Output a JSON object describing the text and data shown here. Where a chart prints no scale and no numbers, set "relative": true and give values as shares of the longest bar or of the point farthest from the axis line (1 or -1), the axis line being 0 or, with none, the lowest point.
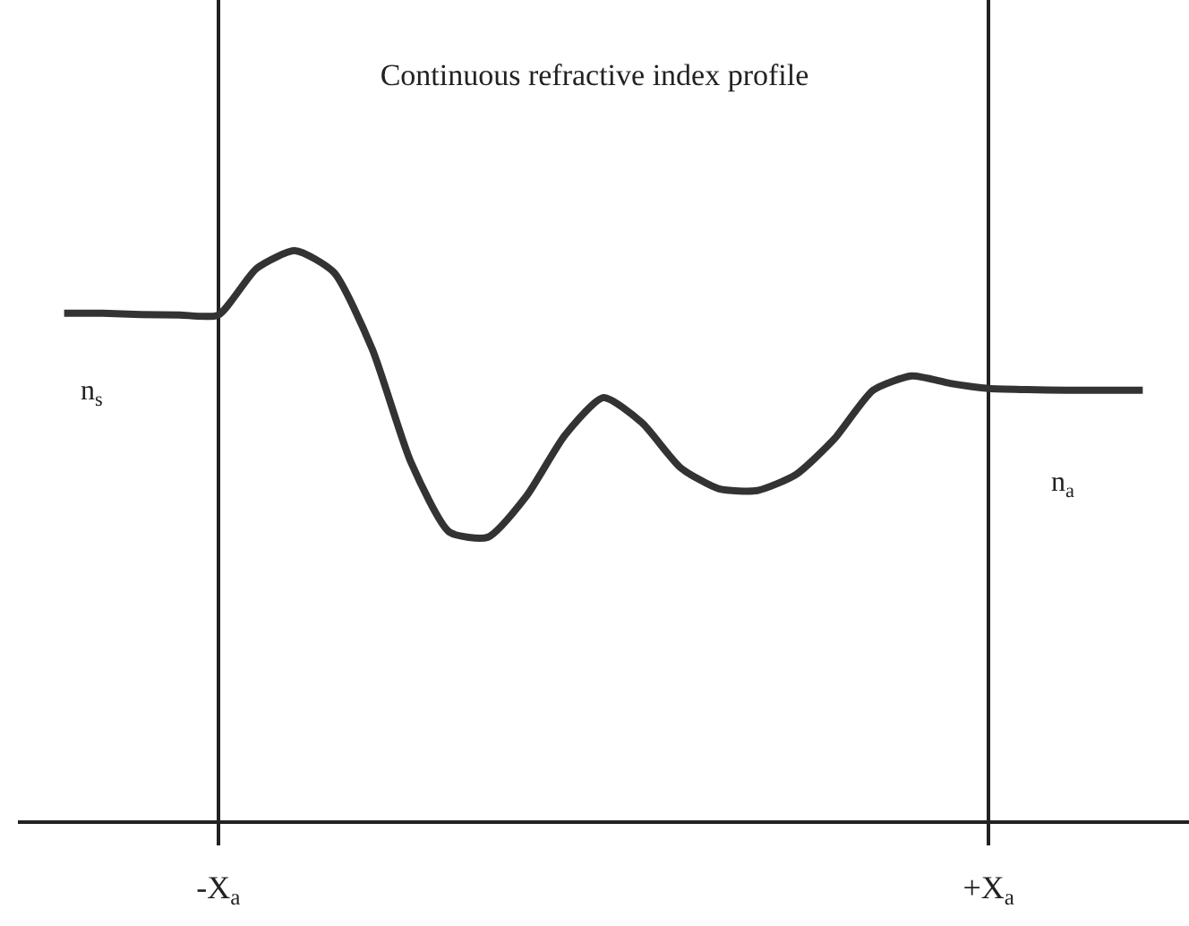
{
  "chart_data": {
    "type": "line",
    "title": "Continuous refractive index profile",
    "relative": true,
    "categories": [
      null,
      null,
      null,
      null,
      "-X$_{a}$",
      null,
      null,
      null,
      null,
      null,
      null,
      null,
      null,
      null,
      null,
      null,
      null,
      null,
      null,
      null,
      null,
      null,
      null,
      null,
      "+X$_{a}$",
      null,
      null,
      null,
      null
    ],
    "grid": "x",
    "marker": "none",
    "line_style": "solid",
    "series": [
      {
        "color": "#333333",
        "values": [
          0.89,
          0.89,
          0.888,
          0.887,
          0.887,
          0.969,
          1,
          0.962,
          0.827,
          0.629,
          0.506,
          0.497,
          0.569,
          0.676,
          0.742,
          0.698,
          0.619,
          0.582,
          0.579,
          0.607,
          0.67,
          0.755,
          0.78,
          0.767,
          0.758,
          0.756,
          0.755,
          0.755,
          0.755
        ]
      }
    ],
    "annotations": [
      "n$_{s}$",
      "n$_{a}$"
    ]
  }
}
